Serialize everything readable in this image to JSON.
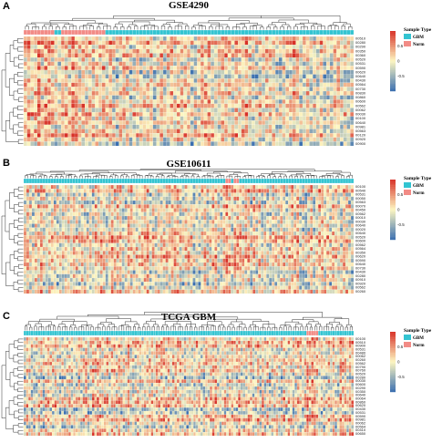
{
  "chart_data": [
    {
      "type": "heatmap",
      "panel_letter": "A",
      "title": "GSE4290",
      "n_columns": 97,
      "column_groups": [
        {
          "name": "Norm",
          "start": 0,
          "count": 9
        },
        {
          "name": "GBM",
          "start": 9,
          "count": 2
        },
        {
          "name": "Norm",
          "start": 11,
          "count": 13
        },
        {
          "name": "GBM",
          "start": 24,
          "count": 73
        }
      ],
      "rows": [
        "00510",
        "00280",
        "00290",
        "00350",
        "00360",
        "00520",
        "00531",
        "00590",
        "00620",
        "00640",
        "00430",
        "00564",
        "00730",
        "00830",
        "00860",
        "00600",
        "00562",
        "00062",
        "00030",
        "00100",
        "00640",
        "00981",
        "00563",
        "00120",
        "00920",
        "00900"
      ],
      "annotation_title": "Sample Type",
      "legend": [
        {
          "label": "GBM",
          "color": "#33c4d1"
        },
        {
          "label": "Norm",
          "color": "#f28b86"
        }
      ],
      "color_ticks": [
        0.5,
        0,
        -0.5
      ],
      "color_range": [
        -1,
        1
      ]
    },
    {
      "type": "heatmap",
      "panel_letter": "B",
      "title": "GSE10611",
      "n_columns": 121,
      "column_groups": [
        {
          "name": "GBM",
          "start": 0,
          "count": 74
        },
        {
          "name": "Norm",
          "start": 74,
          "count": 2
        },
        {
          "name": "GBM",
          "start": 76,
          "count": 1
        },
        {
          "name": "Norm",
          "start": 77,
          "count": 2
        },
        {
          "name": "GBM",
          "start": 79,
          "count": 42
        }
      ],
      "rows": [
        "00100",
        "00540",
        "00531",
        "00050",
        "00563",
        "00070",
        "00450",
        "00562",
        "00010",
        "00030",
        "00640",
        "00020",
        "00640",
        "00520",
        "00600",
        "00562",
        "00564",
        "00350",
        "00620",
        "00590",
        "00640",
        "00730",
        "00430",
        "00280",
        "00910",
        "00920",
        "00562",
        "00260"
      ],
      "annotation_title": "Sample Type",
      "legend": [
        {
          "label": "GBM",
          "color": "#33c4d1"
        },
        {
          "label": "Norm",
          "color": "#f28b86"
        }
      ],
      "color_ticks": [
        0.5,
        0,
        -0.5
      ],
      "color_range": [
        -1,
        1
      ]
    },
    {
      "type": "heatmap",
      "panel_letter": "C",
      "title": "TCGA GBM",
      "n_columns": 140,
      "column_groups": [
        {
          "name": "GBM",
          "start": 0,
          "count": 120
        },
        {
          "name": "Norm",
          "start": 120,
          "count": 5
        },
        {
          "name": "GBM",
          "start": 125,
          "count": 15
        }
      ],
      "rows": [
        "00100",
        "00510",
        "00900",
        "00531",
        "00480",
        "00062",
        "00260",
        "00562",
        "00790",
        "00760",
        "00520",
        "00280",
        "00030",
        "00600",
        "00290",
        "00350",
        "00640",
        "00064",
        "00860",
        "00620",
        "00430",
        "00531",
        "00590",
        "00981",
        "00062",
        "00564",
        "00410",
        "00650"
      ],
      "annotation_title": "Sample Type",
      "legend": [
        {
          "label": "GBM",
          "color": "#33c4d1"
        },
        {
          "label": "Norm",
          "color": "#f28b86"
        }
      ],
      "color_ticks": [
        0.5,
        0,
        -0.5
      ],
      "color_range": [
        -1,
        1
      ]
    }
  ],
  "colors": {
    "low": "#3a6fb0",
    "mid": "#fdf6c0",
    "high": "#d73027",
    "gbm": "#33c4d1",
    "norm": "#f28b86"
  }
}
